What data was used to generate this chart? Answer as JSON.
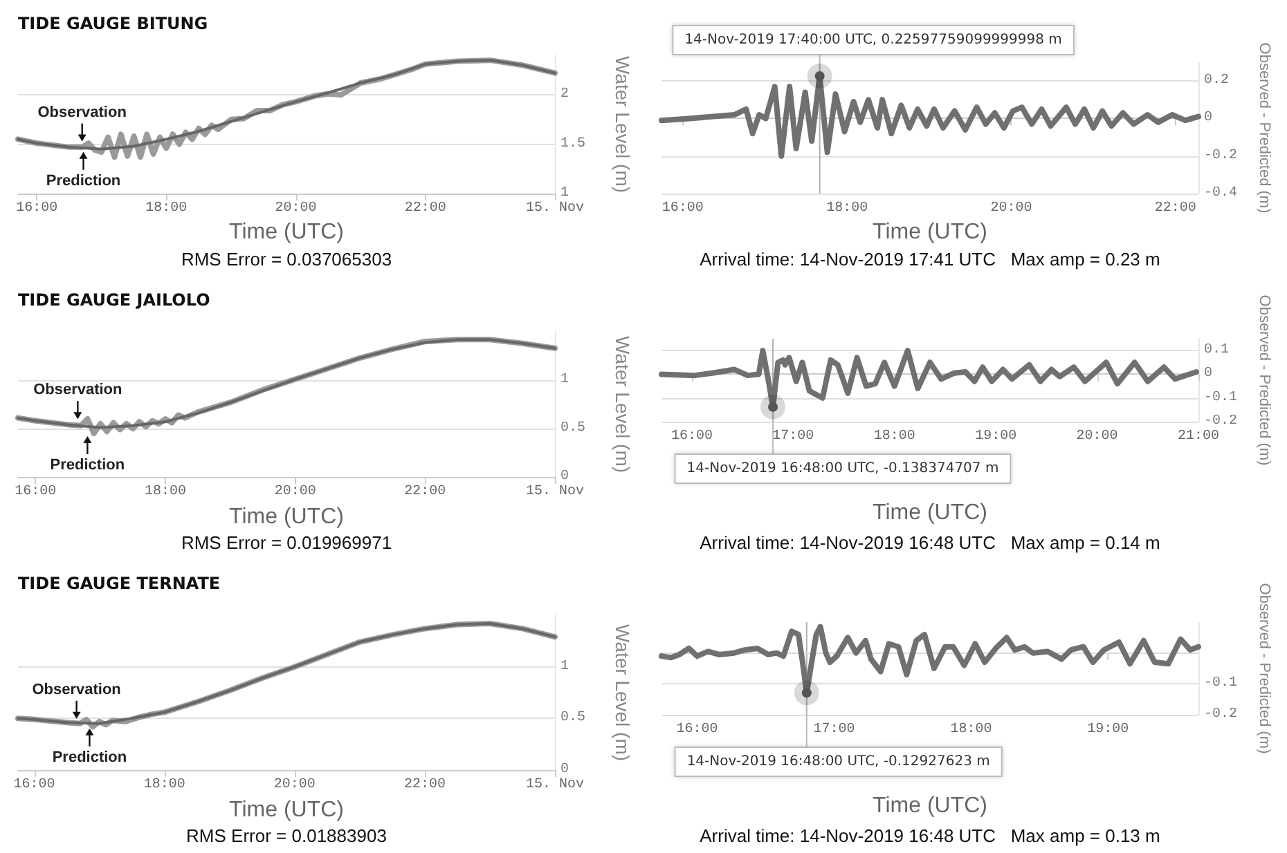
{
  "chart_data": [
    {
      "type": "line",
      "title": "TIDE GAUGE BITUNG",
      "xlabel": "Time (UTC)",
      "ylabel": "Water Level (m)",
      "xlim": [
        15.71,
        24
      ],
      "ylim": [
        1,
        2.4
      ],
      "xticks": [
        {
          "value": 16,
          "label": "16:00"
        },
        {
          "value": 18,
          "label": "18:00"
        },
        {
          "value": 20,
          "label": "20:00"
        },
        {
          "value": 22,
          "label": "22:00"
        },
        {
          "value": 24,
          "label": "15. Nov"
        }
      ],
      "yticks": [
        1,
        1.5,
        2
      ],
      "grid": "y",
      "marker": "none",
      "series": [
        {
          "color": "#9a9a9a",
          "x": [
            15.71,
            16.0,
            16.5,
            16.7,
            16.8,
            16.9,
            17.0,
            17.1,
            17.2,
            17.3,
            17.4,
            17.5,
            17.6,
            17.7,
            17.8,
            17.9,
            18.0,
            18.1,
            18.2,
            18.3,
            18.4,
            18.5,
            18.6,
            18.7,
            18.8,
            19.0,
            19.2,
            19.4,
            19.6,
            19.8,
            20.0,
            20.3,
            20.5,
            20.7,
            21.0,
            21.3,
            21.5,
            21.8,
            22.0,
            22.5,
            23.0,
            23.5,
            24.0
          ],
          "values": [
            1.55,
            1.51,
            1.47,
            1.47,
            1.51,
            1.44,
            1.42,
            1.57,
            1.37,
            1.6,
            1.38,
            1.58,
            1.37,
            1.6,
            1.4,
            1.57,
            1.46,
            1.6,
            1.5,
            1.62,
            1.55,
            1.66,
            1.6,
            1.69,
            1.65,
            1.75,
            1.76,
            1.84,
            1.84,
            1.9,
            1.93,
            1.99,
            2.01,
            2.0,
            2.12,
            2.16,
            2.2,
            2.26,
            2.31,
            2.34,
            2.35,
            2.3,
            2.22
          ]
        },
        {
          "color": "#666666",
          "x": [
            15.71,
            16.0,
            16.5,
            17.0,
            17.5,
            18.0,
            18.5,
            19.0,
            19.5,
            20.0,
            20.5,
            21.0,
            21.5,
            22.0,
            22.5,
            23.0,
            23.5,
            24.0
          ],
          "values": [
            1.55,
            1.51,
            1.47,
            1.45,
            1.48,
            1.55,
            1.63,
            1.73,
            1.83,
            1.93,
            2.02,
            2.12,
            2.2,
            2.31,
            2.34,
            2.35,
            2.3,
            2.22
          ]
        }
      ],
      "annotations": [
        {
          "text": "Observation",
          "x": 16.7,
          "y": 1.5
        },
        {
          "text": "Prediction",
          "x": 16.72,
          "y": 1.45
        },
        "RMS Error = 0.037065303"
      ]
    },
    {
      "type": "line",
      "xlabel": "Time (UTC)",
      "ylabel": "Observed - Predicted (m)",
      "xlim": [
        15.74,
        22.28
      ],
      "ylim": [
        -0.4,
        0.3
      ],
      "xticks": [
        {
          "value": 16,
          "label": "16:00"
        },
        {
          "value": 18,
          "label": "18:00"
        },
        {
          "value": 20,
          "label": "20:00"
        },
        {
          "value": 22,
          "label": "22:00"
        }
      ],
      "yticks": [
        -0.4,
        -0.2,
        0,
        0.2
      ],
      "grid": "y",
      "marker": "none",
      "series": [
        {
          "color": "#707070",
          "x": [
            15.74,
            16.08,
            16.63,
            16.77,
            16.85,
            16.93,
            17.01,
            17.12,
            17.2,
            17.3,
            17.38,
            17.49,
            17.57,
            17.667,
            17.76,
            17.86,
            17.97,
            18.08,
            18.16,
            18.26,
            18.37,
            18.43,
            18.54,
            18.66,
            18.76,
            18.86,
            18.97,
            19.06,
            19.17,
            19.31,
            19.44,
            19.58,
            19.69,
            19.8,
            19.91,
            20.02,
            20.13,
            20.25,
            20.37,
            20.48,
            20.67,
            20.78,
            20.89,
            21.0,
            21.11,
            21.22,
            21.36,
            21.49,
            21.66,
            21.79,
            21.96,
            22.12,
            22.28
          ],
          "values": [
            -0.01,
            0,
            0.02,
            0.05,
            -0.08,
            0.02,
            0,
            0.17,
            -0.2,
            0.17,
            -0.16,
            0.14,
            -0.12,
            0.226,
            -0.18,
            0.13,
            -0.07,
            0.09,
            -0.02,
            0.1,
            -0.05,
            0.1,
            -0.08,
            0.07,
            -0.05,
            0.05,
            -0.04,
            0.05,
            -0.05,
            0.04,
            -0.06,
            0.06,
            -0.03,
            0.03,
            -0.05,
            0.04,
            0.06,
            -0.03,
            0.05,
            -0.04,
            0.06,
            -0.03,
            0.05,
            -0.05,
            0.04,
            -0.04,
            0.03,
            -0.03,
            0.02,
            -0.02,
            0.02,
            -0.01,
            0.01
          ]
        }
      ],
      "ref_lines": [
        {
          "axis": "x",
          "value": 17.667
        }
      ],
      "annotations": [
        {
          "text": "14-Nov-2019 17:40:00 UTC, 0.22597759099999998 m",
          "x": 17.667,
          "y": 0.226
        },
        "Arrival time: 14-Nov-2019 17:41 UTC   Max amp = 0.23 m"
      ]
    },
    {
      "type": "line",
      "title": "TIDE GAUGE JAILOLO",
      "xlabel": "Time (UTC)",
      "ylabel": "Water Level (m)",
      "xlim": [
        15.73,
        24
      ],
      "ylim": [
        0,
        1.5
      ],
      "xticks": [
        {
          "value": 16,
          "label": "16:00"
        },
        {
          "value": 18,
          "label": "18:00"
        },
        {
          "value": 20,
          "label": "20:00"
        },
        {
          "value": 22,
          "label": "22:00"
        },
        {
          "value": 24,
          "label": "15. Nov"
        }
      ],
      "yticks": [
        0,
        0.5,
        1
      ],
      "grid": "y",
      "marker": "none",
      "series": [
        {
          "color": "#9a9a9a",
          "x": [
            15.73,
            16.0,
            16.5,
            16.7,
            16.8,
            16.9,
            17.0,
            17.1,
            17.2,
            17.3,
            17.4,
            17.5,
            17.6,
            17.7,
            17.8,
            17.9,
            18.0,
            18.1,
            18.2,
            18.3,
            18.5,
            19.0,
            19.5,
            20.0,
            20.5,
            21.0,
            21.5,
            22.0,
            22.5,
            23.0,
            23.5,
            24.0
          ],
          "values": [
            0.61,
            0.58,
            0.54,
            0.53,
            0.6,
            0.45,
            0.55,
            0.47,
            0.56,
            0.49,
            0.55,
            0.5,
            0.57,
            0.52,
            0.58,
            0.55,
            0.6,
            0.56,
            0.64,
            0.61,
            0.67,
            0.77,
            0.9,
            1.01,
            1.12,
            1.23,
            1.32,
            1.4,
            1.42,
            1.42,
            1.38,
            1.33
          ]
        },
        {
          "color": "#666666",
          "x": [
            15.73,
            16.0,
            16.5,
            17.0,
            17.5,
            18.0,
            18.5,
            19.0,
            19.5,
            20.0,
            20.5,
            21.0,
            21.5,
            22.0,
            22.5,
            23.0,
            23.5,
            24.0
          ],
          "values": [
            0.61,
            0.58,
            0.54,
            0.51,
            0.53,
            0.57,
            0.66,
            0.77,
            0.89,
            1.01,
            1.12,
            1.23,
            1.32,
            1.39,
            1.42,
            1.42,
            1.38,
            1.33
          ]
        }
      ],
      "annotations": [
        {
          "text": "Observation",
          "x": 16.65,
          "y": 0.57
        },
        {
          "text": "Prediction",
          "x": 16.8,
          "y": 0.45
        },
        "RMS Error = 0.019969971"
      ]
    },
    {
      "type": "line",
      "xlabel": "Time (UTC)",
      "ylabel": "Observed - Predicted (m)",
      "xlim": [
        15.7,
        21
      ],
      "ylim": [
        -0.2,
        0.15
      ],
      "xticks": [
        {
          "value": 16,
          "label": "16:00"
        },
        {
          "value": 17,
          "label": "17:00"
        },
        {
          "value": 18,
          "label": "18:00"
        },
        {
          "value": 19,
          "label": "19:00"
        },
        {
          "value": 20,
          "label": "20:00"
        },
        {
          "value": 21,
          "label": "21:00"
        }
      ],
      "yticks": [
        -0.2,
        -0.1,
        0,
        0.1
      ],
      "grid": "y",
      "marker": "none",
      "series": [
        {
          "color": "#707070",
          "x": [
            15.7,
            16.03,
            16.2,
            16.42,
            16.55,
            16.66,
            16.7,
            16.757,
            16.8,
            16.85,
            16.9,
            16.92,
            16.96,
            17.03,
            17.09,
            17.16,
            17.29,
            17.37,
            17.44,
            17.54,
            17.63,
            17.72,
            17.81,
            17.9,
            18.0,
            18.13,
            18.23,
            18.35,
            18.46,
            18.59,
            18.7,
            18.79,
            18.87,
            18.96,
            19.07,
            19.16,
            19.33,
            19.44,
            19.55,
            19.63,
            19.77,
            19.88,
            20.09,
            20.2,
            20.37,
            20.5,
            20.66,
            20.77,
            20.98
          ],
          "values": [
            0,
            -0.005,
            0.005,
            0.02,
            -0.005,
            0,
            0.1,
            -0.03,
            -0.138,
            0.05,
            0.06,
            0.04,
            0.07,
            -0.03,
            0.05,
            -0.07,
            -0.1,
            0.06,
            0.04,
            -0.08,
            0.07,
            -0.05,
            -0.04,
            0.05,
            -0.05,
            0.1,
            -0.06,
            0.05,
            -0.02,
            0.005,
            0.01,
            -0.03,
            0.03,
            -0.03,
            0.02,
            -0.02,
            0.04,
            -0.03,
            0.02,
            -0.01,
            0.03,
            -0.03,
            0.05,
            -0.04,
            0.05,
            -0.03,
            0.03,
            -0.02,
            0.01
          ]
        }
      ],
      "ref_lines": [
        {
          "axis": "x",
          "value": 16.8
        }
      ],
      "annotations": [
        {
          "text": "14-Nov-2019 16:48:00 UTC, -0.138374707 m",
          "x": 16.8,
          "y": -0.138
        },
        "Arrival time: 14-Nov-2019 16:48 UTC   Max amp = 0.14 m"
      ]
    },
    {
      "type": "line",
      "title": "TIDE GAUGE TERNATE",
      "xlabel": "Time (UTC)",
      "ylabel": "Water Level (m)",
      "xlim": [
        15.75,
        24
      ],
      "ylim": [
        0,
        1.5
      ],
      "xticks": [
        {
          "value": 16,
          "label": "16:00"
        },
        {
          "value": 18,
          "label": "18:00"
        },
        {
          "value": 20,
          "label": "20:00"
        },
        {
          "value": 22,
          "label": "22:00"
        },
        {
          "value": 24,
          "label": "15. Nov"
        }
      ],
      "yticks": [
        0,
        0.5,
        1
      ],
      "grid": "y",
      "marker": "none",
      "series": [
        {
          "color": "#9a9a9a",
          "x": [
            15.75,
            16.0,
            16.5,
            16.7,
            16.8,
            16.9,
            17.0,
            17.1,
            17.2,
            17.4,
            17.6,
            17.8,
            18.0,
            18.5,
            19.0,
            19.5,
            20.0,
            20.5,
            21.0,
            21.5,
            22.0,
            22.5,
            23.0,
            23.5,
            24.0
          ],
          "values": [
            0.5,
            0.49,
            0.46,
            0.45,
            0.49,
            0.42,
            0.47,
            0.44,
            0.48,
            0.47,
            0.51,
            0.54,
            0.56,
            0.66,
            0.77,
            0.89,
            1.0,
            1.12,
            1.24,
            1.31,
            1.37,
            1.41,
            1.42,
            1.37,
            1.29
          ]
        },
        {
          "color": "#666666",
          "x": [
            15.75,
            16.0,
            16.5,
            17.0,
            17.5,
            18.0,
            18.5,
            19.0,
            19.5,
            20.0,
            20.5,
            21.0,
            21.5,
            22.0,
            22.5,
            23.0,
            23.5,
            24.0
          ],
          "values": [
            0.5,
            0.49,
            0.46,
            0.45,
            0.5,
            0.56,
            0.66,
            0.77,
            0.89,
            1.0,
            1.12,
            1.24,
            1.31,
            1.37,
            1.41,
            1.42,
            1.37,
            1.29
          ]
        }
      ],
      "annotations": [
        {
          "text": "Observation",
          "x": 16.65,
          "y": 0.47
        },
        {
          "text": "Prediction",
          "x": 16.85,
          "y": 0.43
        },
        "RMS Error = 0.01883903"
      ]
    },
    {
      "type": "line",
      "xlabel": "Time (UTC)",
      "ylabel": "Observed - Predicted (m)",
      "xlim": [
        15.74,
        19.66
      ],
      "ylim": [
        -0.2,
        0.1
      ],
      "xticks": [
        {
          "value": 16,
          "label": "16:00"
        },
        {
          "value": 17,
          "label": "17:00"
        },
        {
          "value": 18,
          "label": "18:00"
        },
        {
          "value": 19,
          "label": "19:00"
        }
      ],
      "yticks": [
        -0.2,
        -0.1
      ],
      "grid": "y",
      "marker": "none",
      "series": [
        {
          "color": "#707070",
          "x": [
            15.74,
            15.81,
            15.87,
            15.94,
            16.0,
            16.08,
            16.16,
            16.27,
            16.35,
            16.44,
            16.52,
            16.58,
            16.63,
            16.69,
            16.74,
            16.77,
            16.8,
            16.84,
            16.87,
            16.9,
            16.94,
            16.97,
            17.02,
            17.1,
            17.16,
            17.23,
            17.27,
            17.34,
            17.4,
            17.47,
            17.53,
            17.6,
            17.66,
            17.73,
            17.81,
            17.87,
            17.95,
            18.03,
            18.1,
            18.18,
            18.26,
            18.32,
            18.39,
            18.45,
            18.56,
            18.66,
            18.73,
            18.82,
            18.89,
            18.97,
            19.08,
            19.16,
            19.26,
            19.34,
            19.44,
            19.53,
            19.6,
            19.66
          ],
          "values": [
            -0.01,
            -0.015,
            -0.005,
            0.015,
            -0.01,
            0.005,
            -0.005,
            0,
            0.01,
            0.015,
            -0.005,
            0,
            -0.01,
            0.07,
            0.06,
            -0.03,
            -0.129,
            -0.02,
            0.06,
            0.085,
            0,
            -0.03,
            -0.01,
            0.05,
            0,
            0.04,
            -0.02,
            -0.06,
            0.03,
            0.02,
            -0.07,
            0.04,
            0.06,
            -0.05,
            0.02,
            0.02,
            -0.04,
            0.03,
            -0.03,
            0.015,
            0.05,
            0.01,
            0.02,
            0,
            0.005,
            -0.02,
            0.01,
            0.02,
            -0.03,
            0.01,
            0.035,
            -0.035,
            0.04,
            -0.03,
            -0.035,
            0.045,
            0.01,
            0.02
          ]
        }
      ],
      "ref_lines": [
        {
          "axis": "x",
          "value": 16.8
        },
        {
          "axis": "y",
          "value": 0,
          "color": "#e0e0e0"
        }
      ],
      "annotations": [
        {
          "text": "14-Nov-2019 16:48:00 UTC, -0.12927623 m",
          "x": 16.8,
          "y": -0.129
        },
        "Arrival time: 14-Nov-2019 16:48 UTC   Max amp = 0.13 m"
      ]
    }
  ]
}
